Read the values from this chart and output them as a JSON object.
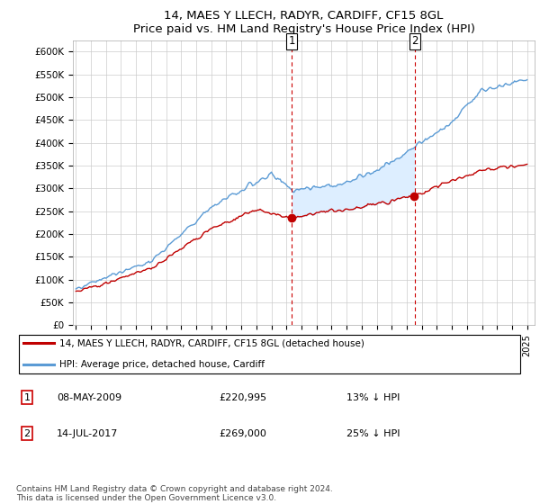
{
  "title": "14, MAES Y LLECH, RADYR, CARDIFF, CF15 8GL",
  "subtitle": "Price paid vs. HM Land Registry's House Price Index (HPI)",
  "ylabel_ticks": [
    0,
    50000,
    100000,
    150000,
    200000,
    250000,
    300000,
    350000,
    400000,
    450000,
    500000,
    550000,
    600000
  ],
  "ylabel_labels": [
    "£0",
    "£50K",
    "£100K",
    "£150K",
    "£200K",
    "£250K",
    "£300K",
    "£350K",
    "£400K",
    "£450K",
    "£500K",
    "£550K",
    "£600K"
  ],
  "ylim": [
    0,
    625000
  ],
  "xlim_start": 1994.8,
  "xlim_end": 2025.5,
  "hpi_color": "#5b9bd5",
  "property_color": "#c00000",
  "fill_color": "#ddeeff",
  "vline_color": "#cc0000",
  "marker1_x": 2009.35,
  "marker1_y": 220995,
  "marker2_x": 2017.54,
  "marker2_y": 269000,
  "legend_line1": "14, MAES Y LLECH, RADYR, CARDIFF, CF15 8GL (detached house)",
  "legend_line2": "HPI: Average price, detached house, Cardiff",
  "table_row1_num": "1",
  "table_row1_date": "08-MAY-2009",
  "table_row1_price": "£220,995",
  "table_row1_hpi": "13% ↓ HPI",
  "table_row2_num": "2",
  "table_row2_date": "14-JUL-2017",
  "table_row2_price": "£269,000",
  "table_row2_hpi": "25% ↓ HPI",
  "footnote": "Contains HM Land Registry data © Crown copyright and database right 2024.\nThis data is licensed under the Open Government Licence v3.0.",
  "background_color": "#ffffff",
  "plot_bg_color": "#ffffff",
  "grid_color": "#cccccc"
}
